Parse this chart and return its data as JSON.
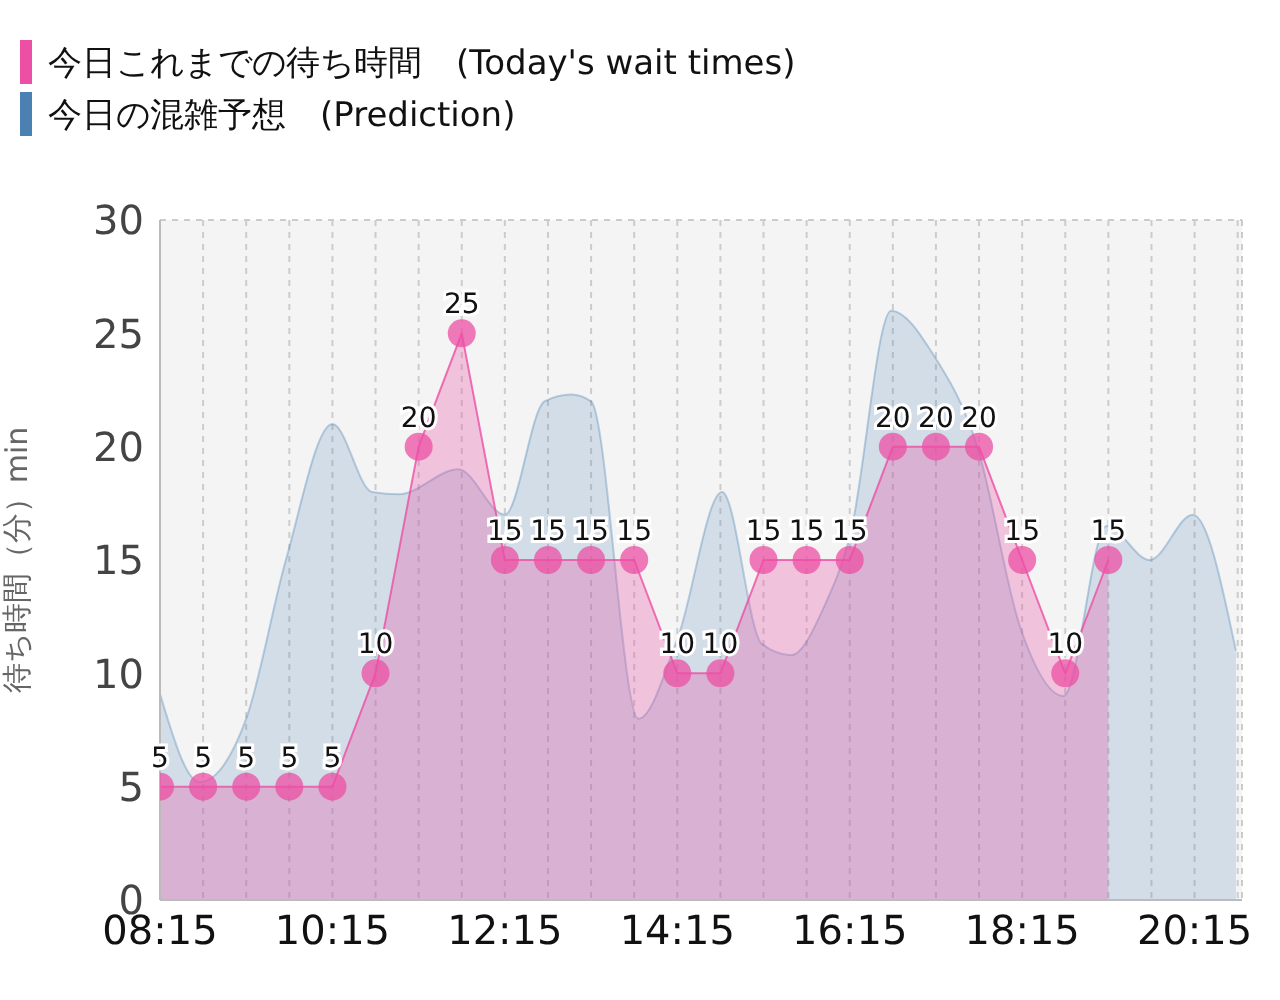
{
  "chart_data": {
    "type": "area",
    "ylabel": "待ち時間（分）min",
    "xlim": [
      8.25,
      20.8
    ],
    "ylim": [
      0,
      30
    ],
    "xticks": [
      {
        "value": 8.25,
        "label": "08:15"
      },
      {
        "value": 8.75,
        "label": null
      },
      {
        "value": 9.25,
        "label": null
      },
      {
        "value": 9.75,
        "label": null
      },
      {
        "value": 10.25,
        "label": "10:15"
      },
      {
        "value": 10.75,
        "label": null
      },
      {
        "value": 11.25,
        "label": null
      },
      {
        "value": 11.75,
        "label": null
      },
      {
        "value": 12.25,
        "label": "12:15"
      },
      {
        "value": 12.75,
        "label": null
      },
      {
        "value": 13.25,
        "label": null
      },
      {
        "value": 13.75,
        "label": null
      },
      {
        "value": 14.25,
        "label": "14:15"
      },
      {
        "value": 14.75,
        "label": null
      },
      {
        "value": 15.25,
        "label": null
      },
      {
        "value": 15.75,
        "label": null
      },
      {
        "value": 16.25,
        "label": "16:15"
      },
      {
        "value": 16.75,
        "label": null
      },
      {
        "value": 17.25,
        "label": null
      },
      {
        "value": 17.75,
        "label": null
      },
      {
        "value": 18.25,
        "label": "18:15"
      },
      {
        "value": 18.75,
        "label": null
      },
      {
        "value": 19.25,
        "label": null
      },
      {
        "value": 19.75,
        "label": null
      },
      {
        "value": 20.25,
        "label": "20:15"
      },
      {
        "value": 20.75,
        "label": null
      }
    ],
    "yticks": [
      0,
      5,
      10,
      15,
      20,
      25,
      30
    ],
    "grid": true,
    "legend": "top left",
    "series": [
      {
        "name": "今日の混雑予想　(Prediction)",
        "color": "#4a80b2",
        "marker": "none",
        "x": [
          8.25,
          8.71,
          9.25,
          9.71,
          10.25,
          10.71,
          11.02,
          11.71,
          12.25,
          12.71,
          13.02,
          13.25,
          13.8,
          14.25,
          14.77,
          15.23,
          15.57,
          15.96,
          16.25,
          16.73,
          17.23,
          17.73,
          18.23,
          18.73,
          19.23,
          19.73,
          20.23,
          20.73
        ],
        "values": [
          9.1,
          5.2,
          8,
          15,
          21,
          18,
          17.9,
          19,
          17,
          22,
          22.3,
          22,
          8,
          11.5,
          18,
          11.3,
          10.8,
          13,
          16,
          26,
          24,
          20,
          12,
          9,
          16.5,
          15,
          17,
          11
        ]
      },
      {
        "name": "今日これまでの待ち時間　(Today's wait times)",
        "color": "#ec4fa4",
        "marker": "circle",
        "x": [
          8.25,
          8.75,
          9.25,
          9.75,
          10.25,
          10.75,
          11.25,
          11.75,
          12.25,
          12.75,
          13.25,
          13.75,
          14.25,
          14.75,
          15.25,
          15.75,
          16.25,
          16.75,
          17.25,
          17.75,
          18.25,
          18.75,
          19.25
        ],
        "values": [
          5,
          5,
          5,
          5,
          5,
          10,
          20,
          25,
          15,
          15,
          15,
          15,
          10,
          10,
          15,
          15,
          15,
          20,
          20,
          20,
          15,
          10,
          15
        ],
        "value_labels": [
          "5",
          "5",
          "5",
          "5",
          "5",
          "10",
          "20",
          "25",
          "15",
          "15",
          "15",
          "15",
          "10",
          "10",
          "15",
          "15",
          "15",
          "20",
          "20",
          "20",
          "15",
          "10",
          "15"
        ]
      }
    ]
  }
}
